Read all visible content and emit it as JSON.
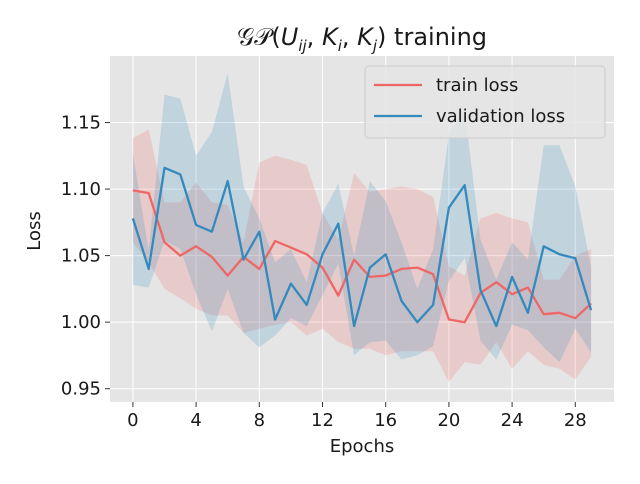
{
  "chart_data": {
    "type": "line",
    "title": "𝒢𝒫(U_ij, K_i, K_j) training",
    "title_parts": {
      "pre": "𝒢𝒫(",
      "u": "U",
      "u_sub": "ij",
      "sep1": ", ",
      "ki": "K",
      "ki_sub": "i",
      "sep2": ", ",
      "kj": "K",
      "kj_sub": "j",
      "post": ") training"
    },
    "xlabel": "Epochs",
    "ylabel": "Loss",
    "xlim": [
      -1.45,
      30.45
    ],
    "ylim": [
      0.94,
      1.2
    ],
    "x_ticks": [
      0,
      4,
      8,
      12,
      16,
      20,
      24,
      28
    ],
    "y_ticks": [
      0.95,
      1.0,
      1.05,
      1.1,
      1.15
    ],
    "y_tick_labels": [
      "0.95",
      "1.00",
      "1.05",
      "1.10",
      "1.15"
    ],
    "grid": true,
    "legend_position": "top-right",
    "background": "#e5e5e5",
    "x": [
      0,
      1,
      2,
      3,
      4,
      5,
      6,
      7,
      8,
      9,
      10,
      11,
      12,
      13,
      14,
      15,
      16,
      17,
      18,
      19,
      20,
      21,
      22,
      23,
      24,
      25,
      26,
      27,
      28,
      29
    ],
    "series": [
      {
        "name": "train loss",
        "color": "#ee6666",
        "values": [
          1.099,
          1.097,
          1.06,
          1.05,
          1.057,
          1.049,
          1.035,
          1.049,
          1.04,
          1.061,
          1.056,
          1.051,
          1.041,
          1.02,
          1.047,
          1.034,
          1.035,
          1.04,
          1.041,
          1.036,
          1.002,
          1.0,
          1.022,
          1.03,
          1.021,
          1.026,
          1.006,
          1.007,
          1.003,
          1.014
        ],
        "band_upper": [
          1.138,
          1.145,
          1.09,
          1.09,
          1.105,
          1.09,
          1.088,
          1.06,
          1.12,
          1.125,
          1.122,
          1.118,
          1.082,
          1.062,
          1.112,
          1.098,
          1.1,
          1.102,
          1.1,
          1.094,
          1.042,
          1.035,
          1.078,
          1.082,
          1.078,
          1.075,
          1.032,
          1.032,
          1.05,
          1.055
        ],
        "band_lower": [
          1.06,
          1.045,
          1.025,
          1.018,
          1.01,
          1.005,
          1.005,
          0.992,
          0.995,
          0.998,
          1.0,
          0.99,
          0.995,
          0.985,
          0.98,
          0.98,
          0.975,
          0.978,
          0.978,
          0.978,
          0.955,
          0.97,
          0.968,
          0.985,
          0.965,
          0.978,
          0.968,
          0.965,
          0.957,
          0.974
        ]
      },
      {
        "name": "validation loss",
        "color": "#348abd",
        "values": [
          1.078,
          1.04,
          1.116,
          1.111,
          1.073,
          1.068,
          1.106,
          1.047,
          1.068,
          1.002,
          1.029,
          1.013,
          1.051,
          1.074,
          0.997,
          1.041,
          1.051,
          1.016,
          1.0,
          1.013,
          1.086,
          1.103,
          1.024,
          0.997,
          1.034,
          1.007,
          1.057,
          1.051,
          1.048,
          1.009
        ],
        "band_upper": [
          1.127,
          1.054,
          1.171,
          1.168,
          1.125,
          1.143,
          1.187,
          1.102,
          1.078,
          1.045,
          1.055,
          1.03,
          1.082,
          1.104,
          1.05,
          1.106,
          1.091,
          1.06,
          1.025,
          1.055,
          1.141,
          1.159,
          1.062,
          1.032,
          1.06,
          1.047,
          1.133,
          1.133,
          1.102,
          1.041
        ],
        "band_lower": [
          1.028,
          1.026,
          1.061,
          1.055,
          1.021,
          0.993,
          1.025,
          0.992,
          0.981,
          0.99,
          1.003,
          0.997,
          1.02,
          1.044,
          0.975,
          0.985,
          0.986,
          0.972,
          0.975,
          0.982,
          1.031,
          1.048,
          0.986,
          0.972,
          0.998,
          0.994,
          0.981,
          0.97,
          0.995,
          0.977
        ]
      }
    ]
  }
}
